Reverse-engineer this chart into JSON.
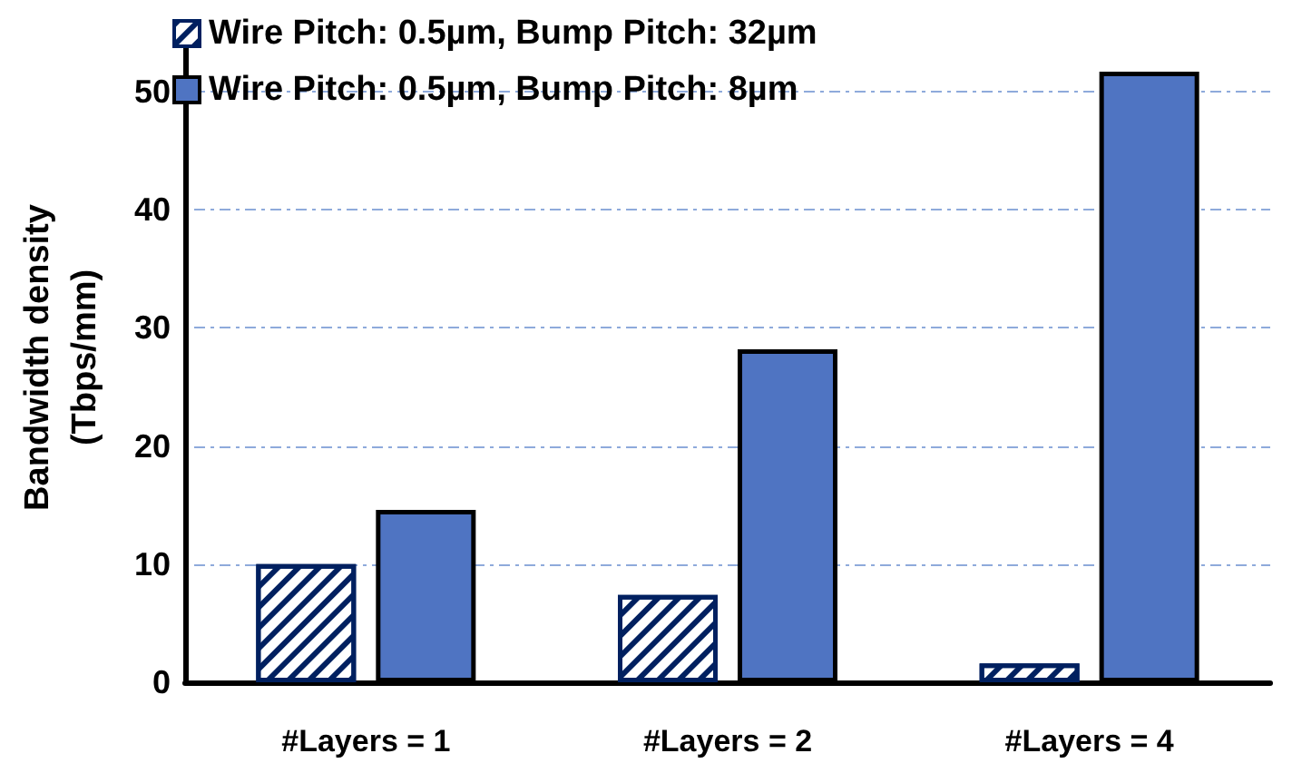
{
  "chart_data": {
    "type": "bar",
    "ylabel": "Bandwidth density\n(Tbps/mm)",
    "categories": [
      "#Layers = 1",
      "#Layers = 2",
      "#Layers = 4"
    ],
    "series": [
      {
        "name": "Wire Pitch: 0.5µm, Bump Pitch: 32µm",
        "color": "#002060",
        "values": [
          10,
          7.4,
          1.6
        ]
      },
      {
        "name": "Wire Pitch: 0.5µm, Bump Pitch: 8µm",
        "color": "#4f74c2",
        "values": [
          14.6,
          28.2,
          51.7
        ]
      }
    ],
    "ylim": [
      0,
      55
    ],
    "yticks": [
      0,
      10,
      20,
      30,
      40,
      50
    ],
    "grid": "y",
    "legend": "top left"
  }
}
